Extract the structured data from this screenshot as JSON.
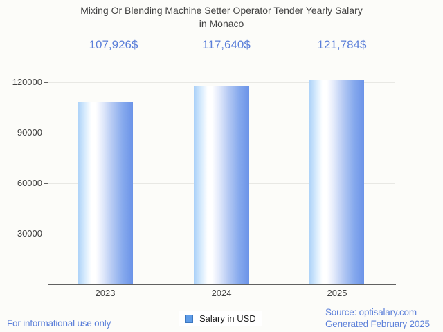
{
  "title": {
    "line1": "Mixing Or Blending Machine Setter Operator Tender Yearly Salary",
    "line2": "in Monaco"
  },
  "chart_data": {
    "type": "bar",
    "categories": [
      "2023",
      "2024",
      "2025"
    ],
    "series": [
      {
        "name": "Salary in USD",
        "values": [
          107926,
          117640,
          121784
        ]
      }
    ],
    "values": [
      107926,
      117640,
      121784
    ],
    "value_labels": [
      "107,926$",
      "117,640$",
      "121,784$"
    ],
    "title": "Mixing Or Blending Machine Setter Operator Tender Yearly Salary in Monaco",
    "xlabel": "",
    "ylabel": "",
    "ylim": [
      0,
      132000
    ],
    "yticks": [
      30000,
      60000,
      90000,
      120000
    ],
    "ytick_labels": [
      "30000",
      "60000",
      "90000",
      "120000"
    ],
    "grid": true,
    "legend_position": "bottom",
    "bar_gradient": [
      "#a9d0f8",
      "#ffffff",
      "#6b93e8"
    ]
  },
  "legend": {
    "label": "Salary in USD",
    "swatch_color": "#5e9ce8",
    "swatch_border": "#3c77c0"
  },
  "footer": {
    "left": "For informational use only",
    "source": "Source: optisalary.com",
    "generated": "Generated February 2025"
  },
  "colors": {
    "background": "#fcfcf9",
    "accent_blue": "#5b7fd9",
    "title_text": "#424242",
    "axis": "#616161",
    "gridline": "#e8e8e4"
  }
}
